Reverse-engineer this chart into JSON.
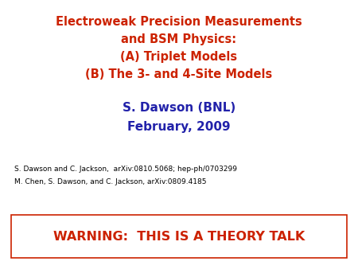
{
  "title_line1": "Electroweak Precision Measurements",
  "title_line2": "and BSM Physics:",
  "title_line3": "(A) Triplet Models",
  "title_line4": "(B) The 3- and 4-Site Models",
  "author": "S. Dawson (BNL)",
  "date": "February, 2009",
  "ref1": "S. Dawson and C. Jackson,  arXiv:0810.5068; hep-ph/0703299",
  "ref2": "M. Chen, S. Dawson, and C. Jackson, arXiv:0809.4185",
  "warning": "WARNING:  THIS IS A THEORY TALK",
  "title_color": "#CC2200",
  "author_color": "#2222AA",
  "ref_color": "#000000",
  "warning_color": "#CC2200",
  "warning_box_color": "#CC2200",
  "bg_color": "#FFFFFF"
}
